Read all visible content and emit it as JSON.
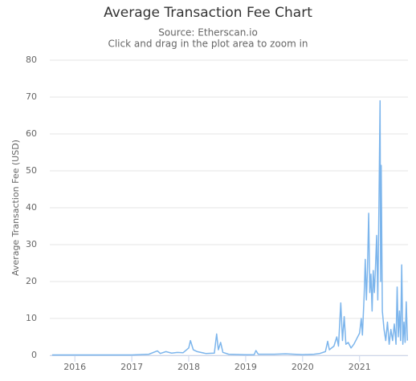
{
  "chart_data": {
    "type": "line",
    "title": "Average Transaction Fee Chart",
    "subtitle": [
      "Source: Etherscan.io",
      "Click and drag in the plot area to zoom in"
    ],
    "y_label": "Average Transaction Fee (USD)",
    "color": "#7cb5ec",
    "grid": true,
    "xlim": [
      2015.56,
      2021.85
    ],
    "xticks": [
      2016,
      2017,
      2018,
      2019,
      2020,
      2021
    ],
    "ylim": [
      0,
      80
    ],
    "yticks": [
      0,
      10,
      20,
      30,
      40,
      50,
      60,
      70,
      80
    ],
    "x": [
      2015.6,
      2016.0,
      2016.5,
      2017.0,
      2017.3,
      2017.45,
      2017.5,
      2017.6,
      2017.7,
      2017.8,
      2017.9,
      2018.0,
      2018.03,
      2018.08,
      2018.15,
      2018.3,
      2018.45,
      2018.49,
      2018.52,
      2018.56,
      2018.6,
      2018.7,
      2019.0,
      2019.15,
      2019.18,
      2019.22,
      2019.5,
      2019.7,
      2020.0,
      2020.2,
      2020.3,
      2020.4,
      2020.44,
      2020.47,
      2020.55,
      2020.6,
      2020.63,
      2020.67,
      2020.7,
      2020.73,
      2020.76,
      2020.8,
      2020.85,
      2020.9,
      2020.95,
      2021.0,
      2021.03,
      2021.05,
      2021.08,
      2021.1,
      2021.12,
      2021.14,
      2021.16,
      2021.18,
      2021.2,
      2021.22,
      2021.24,
      2021.26,
      2021.28,
      2021.3,
      2021.32,
      2021.34,
      2021.36,
      2021.37,
      2021.38,
      2021.4,
      2021.43,
      2021.46,
      2021.49,
      2021.52,
      2021.55,
      2021.58,
      2021.61,
      2021.64,
      2021.66,
      2021.68,
      2021.7,
      2021.72,
      2021.74,
      2021.76,
      2021.78,
      2021.8,
      2021.82,
      2021.84
    ],
    "values": [
      0.1,
      0.1,
      0.1,
      0.1,
      0.3,
      1.2,
      0.5,
      1.0,
      0.6,
      0.8,
      0.7,
      2.0,
      4.0,
      1.5,
      1.0,
      0.5,
      0.6,
      5.8,
      1.5,
      3.5,
      0.8,
      0.3,
      0.15,
      0.2,
      1.3,
      0.3,
      0.3,
      0.4,
      0.2,
      0.3,
      0.5,
      1.0,
      3.8,
      1.5,
      2.5,
      5.0,
      2.5,
      14.2,
      4.0,
      10.5,
      3.0,
      3.5,
      2.0,
      3.0,
      4.5,
      6.0,
      10.0,
      5.5,
      16.0,
      26.0,
      15.0,
      24.0,
      38.5,
      17.0,
      22.0,
      12.0,
      23.0,
      17.0,
      24.0,
      32.5,
      15.0,
      40.0,
      69.0,
      20.0,
      51.5,
      12.0,
      7.0,
      4.0,
      9.0,
      3.0,
      7.0,
      4.0,
      8.5,
      3.0,
      18.5,
      5.0,
      12.0,
      4.0,
      24.5,
      3.0,
      9.0,
      3.5,
      14.5,
      4.0
    ]
  }
}
